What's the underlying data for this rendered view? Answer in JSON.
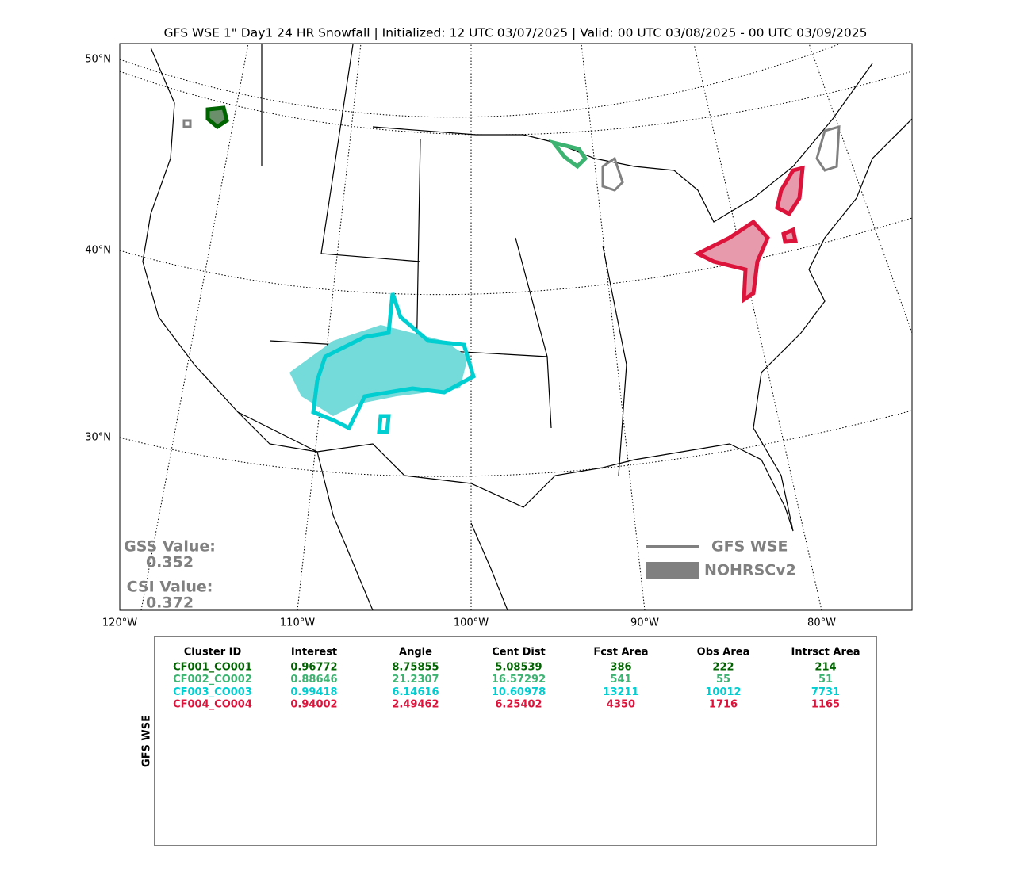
{
  "title": "GFS WSE 1\" Day1 24 HR Snowfall | Initialized: 12 UTC 03/07/2025 | Valid: 00 UTC 03/08/2025 - 00 UTC 03/09/2025",
  "map": {
    "lat_labels": [
      "50°N",
      "40°N",
      "30°N"
    ],
    "lon_labels": [
      "120°W",
      "110°W",
      "100°W",
      "90°W",
      "80°W"
    ],
    "stats": [
      {
        "label": "GSS Value:",
        "value": "0.352"
      },
      {
        "label": "CSI Value:",
        "value": "0.372"
      }
    ],
    "legend": [
      {
        "name": "GFS WSE",
        "color": "#808080"
      },
      {
        "name": "NOHRSCv2",
        "color": "#808080"
      }
    ]
  },
  "table": {
    "side_label": "GFS WSE",
    "columns": [
      "Cluster ID",
      "Interest",
      "Angle",
      "Cent Dist",
      "Fcst Area",
      "Obs Area",
      "Intrsct Area"
    ],
    "rows": [
      {
        "color": "#006400",
        "cells": [
          "CF001_CO001",
          0.96772,
          8.75855,
          5.08539,
          386,
          222,
          214
        ]
      },
      {
        "color": "#3cb371",
        "cells": [
          "CF002_CO002",
          0.88646,
          21.2307,
          16.57292,
          541,
          55,
          51
        ]
      },
      {
        "color": "#00ced1",
        "cells": [
          "CF003_CO003",
          0.99418,
          6.14616,
          10.60978,
          13211,
          10012,
          7731
        ]
      },
      {
        "color": "#dc143c",
        "cells": [
          "CF004_CO004",
          0.94002,
          2.49462,
          6.25402,
          4350,
          1716,
          1165
        ]
      }
    ]
  }
}
